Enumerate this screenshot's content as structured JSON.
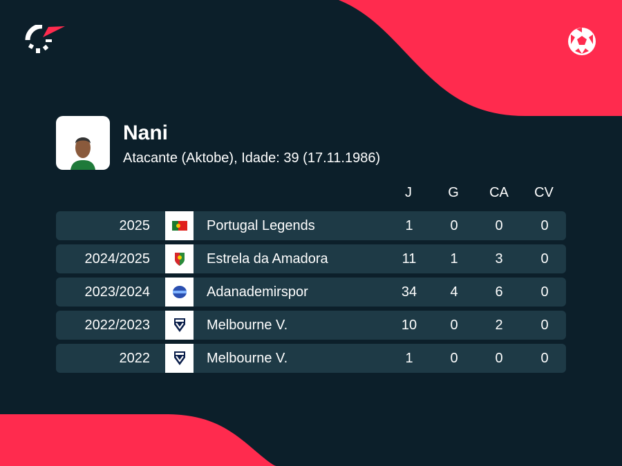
{
  "brand_color": "#ff2b4e",
  "player": {
    "name": "Nani",
    "details": "Atacante (Aktobe), Idade: 39 (17.11.1986)"
  },
  "columns": [
    "J",
    "G",
    "CA",
    "CV"
  ],
  "rows": [
    {
      "season": "2025",
      "team": "Portugal Legends",
      "badge": "portugal-flag-icon",
      "stats": [
        "1",
        "0",
        "0",
        "0"
      ]
    },
    {
      "season": "2024/2025",
      "team": "Estrela da Amadora",
      "badge": "estrela-crest-icon",
      "stats": [
        "11",
        "1",
        "3",
        "0"
      ]
    },
    {
      "season": "2023/2024",
      "team": "Adanademirspor",
      "badge": "adanademirspor-crest-icon",
      "stats": [
        "34",
        "4",
        "6",
        "0"
      ]
    },
    {
      "season": "2022/2023",
      "team": "Melbourne V.",
      "badge": "melbourne-victory-crest-icon",
      "stats": [
        "10",
        "0",
        "2",
        "0"
      ]
    },
    {
      "season": "2022",
      "team": "Melbourne V.",
      "badge": "melbourne-victory-crest-icon",
      "stats": [
        "1",
        "0",
        "0",
        "0"
      ]
    }
  ]
}
